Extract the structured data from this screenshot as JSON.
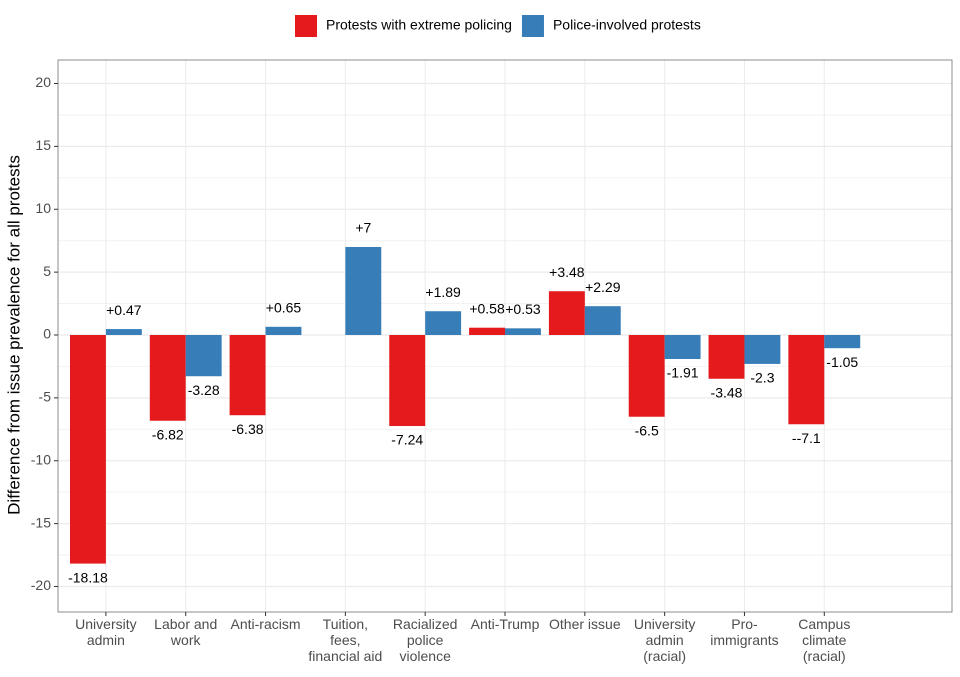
{
  "chart_data": {
    "type": "bar",
    "y_label": "Difference from issue prevalence for all protests",
    "categories": [
      "University\nadmin",
      "Labor and\nwork",
      "Anti-racism",
      "Tuition,\nfees,\nfinancial aid",
      "Racialized\npolice\nviolence",
      "Anti-Trump",
      "Other issue",
      "University\nadmin\n(racial)",
      "Pro-\nimmigrants",
      "Campus\nclimate\n(racial)"
    ],
    "series": [
      {
        "name": "Protests with extreme policing",
        "color": "#e41a1c",
        "values": [
          -18.18,
          -6.82,
          -6.38,
          null,
          -7.24,
          0.58,
          3.48,
          -6.5,
          -3.48,
          -7.1
        ],
        "value_labels": [
          "-18.18",
          "-6.82",
          "-6.38",
          null,
          "-7.24",
          "+0.58",
          "+3.48",
          "-6.5",
          "-3.48",
          "--7.1"
        ]
      },
      {
        "name": "Police-involved protests",
        "color": "#377eb8",
        "values": [
          0.47,
          -3.28,
          0.65,
          7,
          1.89,
          0.53,
          2.29,
          -1.91,
          -2.3,
          -1.05
        ],
        "value_labels": [
          "+0.47",
          "-3.28",
          "+0.65",
          "+7",
          "+1.89",
          "+0.53",
          "+2.29",
          "-1.91",
          "-2.3",
          "-1.05"
        ]
      }
    ],
    "ylim": [
      -22.03,
      21.87
    ],
    "yticks": [
      -20,
      -15,
      -10,
      -5,
      0,
      5,
      10,
      15,
      20
    ],
    "yminor": [
      -17.5,
      -12.5,
      -7.5,
      -2.5,
      2.5,
      7.5,
      12.5,
      17.5
    ],
    "grid": true,
    "legend": "top"
  }
}
